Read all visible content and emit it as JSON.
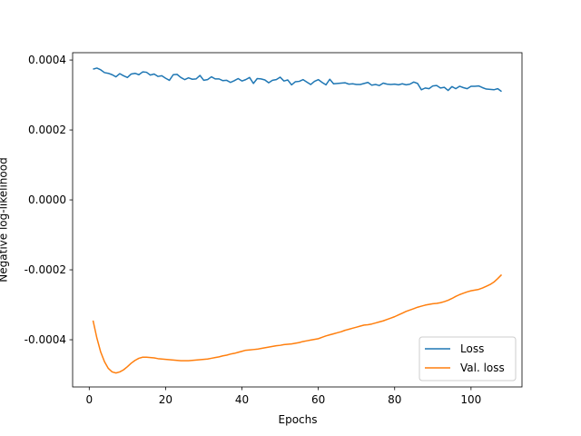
{
  "chart_data": {
    "type": "line",
    "x_label": "Epochs",
    "y_label": "Negative log-likelihood",
    "x": [
      1,
      2,
      3,
      4,
      5,
      6,
      7,
      8,
      9,
      10,
      11,
      12,
      13,
      14,
      15,
      16,
      17,
      18,
      19,
      20,
      21,
      22,
      23,
      24,
      25,
      26,
      27,
      28,
      29,
      30,
      31,
      32,
      33,
      34,
      35,
      36,
      37,
      38,
      39,
      40,
      41,
      42,
      43,
      44,
      45,
      46,
      47,
      48,
      49,
      50,
      51,
      52,
      53,
      54,
      55,
      56,
      57,
      58,
      59,
      60,
      61,
      62,
      63,
      64,
      65,
      66,
      67,
      68,
      69,
      70,
      71,
      72,
      73,
      74,
      75,
      76,
      77,
      78,
      79,
      80,
      81,
      82,
      83,
      84,
      85,
      86,
      87,
      88,
      89,
      90,
      91,
      92,
      93,
      94,
      95,
      96,
      97,
      98,
      99,
      100,
      101,
      102,
      103,
      104,
      105,
      106,
      107,
      108
    ],
    "series": [
      {
        "name": "Loss",
        "color": "#1f77b4",
        "values": [
          0.000374,
          0.000377,
          0.000372,
          0.000364,
          0.000362,
          0.000358,
          0.000352,
          0.000361,
          0.000355,
          0.00035,
          0.00036,
          0.000362,
          0.000358,
          0.000366,
          0.000365,
          0.000357,
          0.00036,
          0.000353,
          0.000355,
          0.000348,
          0.000342,
          0.000358,
          0.000359,
          0.00035,
          0.000344,
          0.000349,
          0.000345,
          0.000346,
          0.000356,
          0.000342,
          0.000344,
          0.000352,
          0.000346,
          0.000346,
          0.000341,
          0.000342,
          0.000336,
          0.000341,
          0.000347,
          0.00034,
          0.000344,
          0.00035,
          0.000333,
          0.000347,
          0.000346,
          0.000343,
          0.000335,
          0.000342,
          0.000344,
          0.000351,
          0.00034,
          0.000343,
          0.000329,
          0.000338,
          0.000339,
          0.000344,
          0.000337,
          0.00033,
          0.000339,
          0.000344,
          0.000336,
          0.000329,
          0.000345,
          0.000332,
          0.000333,
          0.000334,
          0.000335,
          0.000331,
          0.000332,
          0.00033,
          0.00033,
          0.000333,
          0.000336,
          0.000328,
          0.00033,
          0.000327,
          0.000334,
          0.000331,
          0.00033,
          0.000331,
          0.000329,
          0.000332,
          0.000329,
          0.000331,
          0.000337,
          0.000333,
          0.000315,
          0.00032,
          0.000318,
          0.000326,
          0.000327,
          0.00032,
          0.000322,
          0.000313,
          0.000324,
          0.000318,
          0.000325,
          0.000321,
          0.000318,
          0.000325,
          0.000325,
          0.000326,
          0.000321,
          0.000317,
          0.000316,
          0.000315,
          0.000318,
          0.00031
        ]
      },
      {
        "name": "Val. loss",
        "color": "#ff7f0e",
        "values": [
          -0.000345,
          -0.000395,
          -0.000435,
          -0.000463,
          -0.000482,
          -0.000492,
          -0.000495,
          -0.000492,
          -0.000486,
          -0.000477,
          -0.000467,
          -0.000459,
          -0.000453,
          -0.00045,
          -0.00045,
          -0.000451,
          -0.000452,
          -0.000454,
          -0.000455,
          -0.000456,
          -0.000457,
          -0.000458,
          -0.000459,
          -0.00046,
          -0.00046,
          -0.00046,
          -0.000459,
          -0.000458,
          -0.000457,
          -0.000456,
          -0.000455,
          -0.000453,
          -0.000451,
          -0.000449,
          -0.000446,
          -0.000444,
          -0.000441,
          -0.000439,
          -0.000436,
          -0.000433,
          -0.00043,
          -0.000429,
          -0.000428,
          -0.000427,
          -0.000425,
          -0.000423,
          -0.000421,
          -0.000419,
          -0.000417,
          -0.000416,
          -0.000414,
          -0.000413,
          -0.000412,
          -0.00041,
          -0.000408,
          -0.000405,
          -0.000403,
          -0.000401,
          -0.000399,
          -0.000397,
          -0.000393,
          -0.000389,
          -0.000386,
          -0.000383,
          -0.00038,
          -0.000377,
          -0.000373,
          -0.00037,
          -0.000367,
          -0.000364,
          -0.000361,
          -0.000358,
          -0.000357,
          -0.000355,
          -0.000352,
          -0.000349,
          -0.000346,
          -0.000342,
          -0.000338,
          -0.000334,
          -0.000329,
          -0.000324,
          -0.000319,
          -0.000315,
          -0.000311,
          -0.000307,
          -0.000304,
          -0.000301,
          -0.000299,
          -0.000297,
          -0.000296,
          -0.000294,
          -0.000291,
          -0.000287,
          -0.000282,
          -0.000276,
          -0.000271,
          -0.000267,
          -0.000263,
          -0.00026,
          -0.000258,
          -0.000256,
          -0.000252,
          -0.000247,
          -0.000242,
          -0.000235,
          -0.000225,
          -0.000214
        ]
      }
    ],
    "xlim": [
      -4.35,
      113.35
    ],
    "xticks": [
      0,
      20,
      40,
      60,
      80,
      100
    ],
    "ylim": [
      -0.000535,
      0.000421
    ],
    "yticks": [
      -0.0004,
      -0.0002,
      {
        "value": 0,
        "label": "0.0000"
      },
      0.0002,
      0.0004
    ],
    "legend": "lower right"
  }
}
